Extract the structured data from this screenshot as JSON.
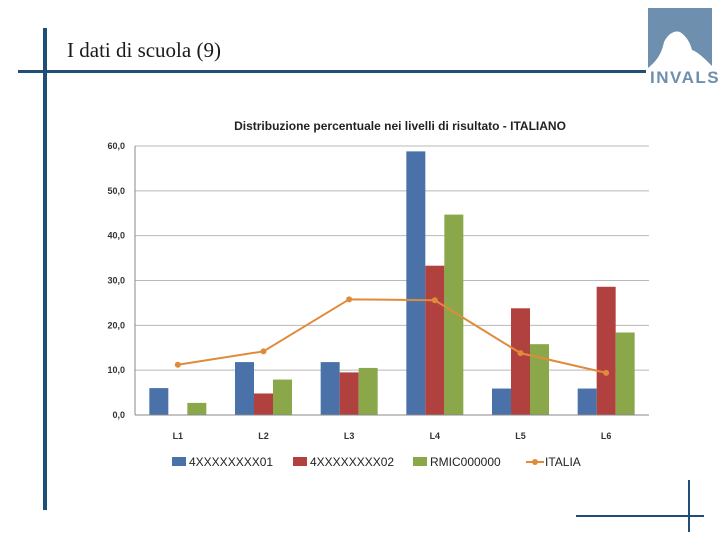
{
  "slide": {
    "title": "I dati di scuola (9)",
    "logo_text": "INVALSI"
  },
  "colors": {
    "frame": "#1f4e79",
    "logo": "#6e8fae"
  },
  "chart_data": {
    "type": "bar",
    "title": "Distribuzione percentuale nei livelli di risultato - ITALIANO",
    "categories": [
      "L1",
      "L2",
      "L3",
      "L4",
      "L5",
      "L6"
    ],
    "ylim": [
      0,
      60
    ],
    "yticks": [
      "0,0",
      "10,0",
      "20,0",
      "30,0",
      "40,0",
      "50,0",
      "60,0"
    ],
    "grid": true,
    "legend_position": "bottom",
    "series": [
      {
        "name": "4XXXXXXXX01",
        "type": "bar",
        "color": "#4a72a8",
        "values": [
          6.0,
          11.8,
          11.8,
          58.8,
          5.9,
          5.9
        ]
      },
      {
        "name": "4XXXXXXXX02",
        "type": "bar",
        "color": "#b0413e",
        "values": [
          0.0,
          4.8,
          9.5,
          33.3,
          23.8,
          28.6
        ]
      },
      {
        "name": "RMIC000000",
        "type": "bar",
        "color": "#8aa84a",
        "values": [
          2.7,
          7.9,
          10.5,
          44.7,
          15.8,
          18.4
        ]
      },
      {
        "name": "ITALIA",
        "type": "line",
        "color": "#e08a3c",
        "values": [
          11.2,
          14.2,
          25.8,
          25.6,
          13.8,
          9.4
        ]
      }
    ]
  }
}
